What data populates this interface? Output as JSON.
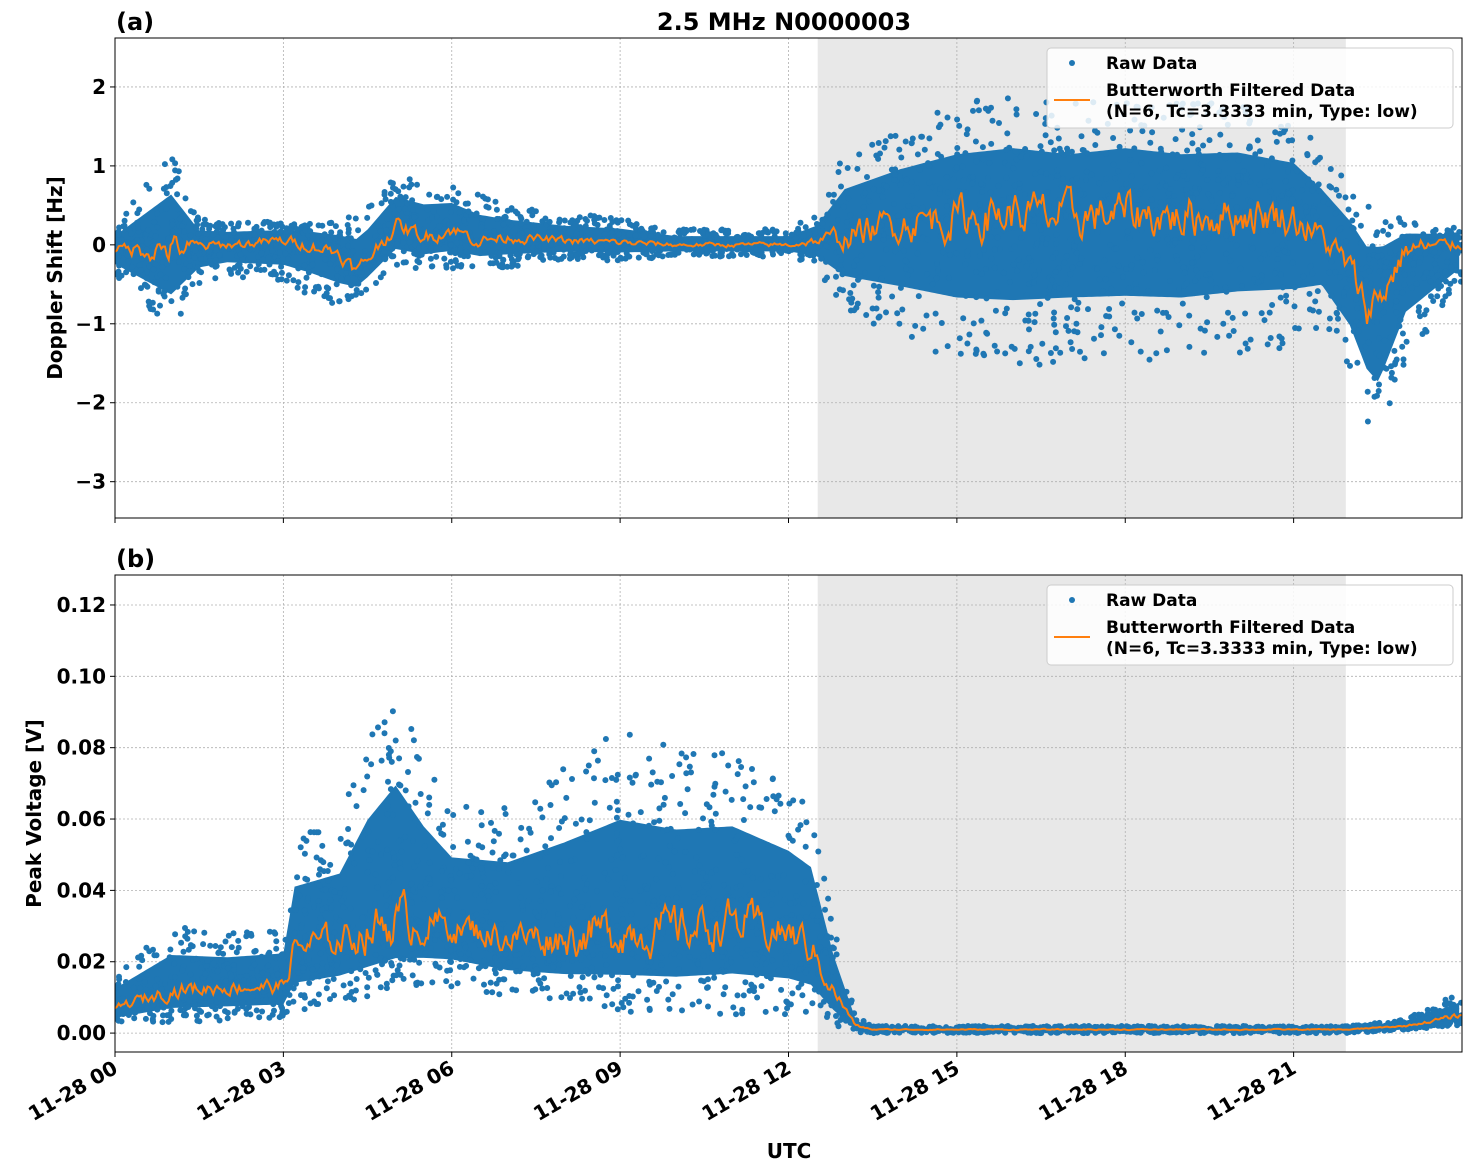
{
  "chart_data": [
    {
      "type": "scatter",
      "panel_label": "(a)",
      "title": "2.5 MHz N0000003",
      "xlabel": "",
      "ylabel": "Doppler Shift [Hz]",
      "xlim_hours_utc": [
        0,
        24
      ],
      "ylim": [
        -3.46,
        2.62
      ],
      "yticks": [
        2,
        1,
        0,
        -1,
        -2,
        -3
      ],
      "ytick_labels": [
        "2",
        "1",
        "0",
        "−1",
        "−2",
        "−3"
      ],
      "grid": true,
      "legend_placement": "top-right",
      "shaded_interval_hours_utc": [
        12.52,
        21.93
      ],
      "series": [
        {
          "name": "Raw Data",
          "kind": "scatter",
          "color": "#1f77b4",
          "hours": [
            0,
            1,
            1.5,
            2,
            3,
            4,
            4.5,
            5,
            6,
            7,
            8,
            9,
            10,
            11,
            12,
            12.5,
            13,
            14,
            15,
            16,
            17,
            18,
            19,
            20,
            21,
            21.5,
            22,
            22.5,
            23,
            24
          ],
          "band_low": [
            -0.4,
            -1.1,
            -0.5,
            -0.4,
            -0.5,
            -0.8,
            -0.6,
            -0.3,
            -0.3,
            -0.3,
            -0.2,
            -0.2,
            -0.15,
            -0.15,
            -0.15,
            -0.3,
            -0.8,
            -1.2,
            -1.5,
            -1.6,
            -1.5,
            -1.5,
            -1.5,
            -1.4,
            -1.3,
            -1.0,
            -1.6,
            -2.6,
            -1.5,
            -0.5
          ],
          "band_high": [
            0.25,
            1.2,
            0.35,
            0.3,
            0.3,
            0.3,
            0.5,
            0.9,
            0.8,
            0.5,
            0.4,
            0.35,
            0.2,
            0.2,
            0.2,
            0.4,
            1.2,
            1.5,
            1.8,
            1.9,
            1.8,
            1.9,
            1.8,
            1.8,
            1.6,
            1.2,
            0.8,
            0.5,
            0.3,
            0.25
          ]
        },
        {
          "name": "Butterworth Filtered Data\n(N=6, Tc=3.3333 min, Type: low)",
          "kind": "line",
          "color": "#ff7f0e",
          "hours": [
            0,
            1,
            2,
            3,
            3.5,
            4,
            4.3,
            5,
            5.5,
            6,
            6.5,
            7,
            8,
            9,
            10,
            11,
            12,
            12.5,
            13,
            14,
            15,
            16,
            17,
            18,
            19,
            20,
            21,
            21.5,
            22,
            22.3,
            22.6,
            23,
            24
          ],
          "values": [
            -0.05,
            -0.05,
            0,
            0.05,
            0,
            -0.1,
            -0.35,
            0.25,
            0.1,
            0.2,
            0.05,
            0.1,
            0.05,
            0.03,
            0,
            0,
            0,
            0.05,
            0.1,
            0.3,
            0.35,
            0.4,
            0.35,
            0.4,
            0.35,
            0.4,
            0.35,
            0.1,
            -0.3,
            -0.8,
            -0.6,
            -0.05,
            0
          ]
        }
      ]
    },
    {
      "type": "scatter",
      "panel_label": "(b)",
      "xlabel": "UTC",
      "ylabel": "Peak Voltage [V]",
      "xlim_hours_utc": [
        0,
        24
      ],
      "ylim": [
        -0.0053,
        0.1284
      ],
      "yticks": [
        0.12,
        0.1,
        0.08,
        0.06,
        0.04,
        0.02,
        0.0
      ],
      "ytick_labels": [
        "0.12",
        "0.10",
        "0.08",
        "0.06",
        "0.04",
        "0.02",
        "0.00"
      ],
      "xtick_labels": [
        "11-28 00",
        "11-28 03",
        "11-28 06",
        "11-28 09",
        "11-28 12",
        "11-28 15",
        "11-28 18",
        "11-28 21"
      ],
      "xtick_hours": [
        0,
        3,
        6,
        9,
        12,
        15,
        18,
        21
      ],
      "grid": true,
      "legend_placement": "top-right",
      "shaded_interval_hours_utc": [
        12.52,
        21.93
      ],
      "series": [
        {
          "name": "Raw Data",
          "kind": "scatter",
          "color": "#1f77b4",
          "hours": [
            0,
            1,
            2,
            3,
            3.2,
            4,
            4.5,
            5,
            5.5,
            6,
            7,
            8,
            9,
            10,
            11,
            12,
            12.4,
            12.8,
            13.2,
            13.5,
            22,
            23,
            24
          ],
          "band_low": [
            0.002,
            0.003,
            0.003,
            0.004,
            0.006,
            0.008,
            0.01,
            0.012,
            0.013,
            0.013,
            0.01,
            0.008,
            0.006,
            0.005,
            0.005,
            0.005,
            0.005,
            0.002,
            0,
            0,
            0,
            0.001,
            0.002
          ],
          "band_high": [
            0.017,
            0.03,
            0.028,
            0.03,
            0.055,
            0.06,
            0.085,
            0.1,
            0.08,
            0.065,
            0.065,
            0.075,
            0.085,
            0.08,
            0.08,
            0.07,
            0.065,
            0.03,
            0.005,
            0.002,
            0.002,
            0.004,
            0.012
          ]
        },
        {
          "name": "Butterworth Filtered Data\n(N=6, Tc=3.3333 min, Type: low)",
          "kind": "line",
          "color": "#ff7f0e",
          "hours": [
            0,
            1,
            2,
            3,
            3.2,
            4,
            5,
            6,
            7,
            8,
            9,
            10,
            11,
            12,
            12.4,
            12.8,
            13.2,
            13.5,
            22,
            23,
            24
          ],
          "values": [
            0.007,
            0.012,
            0.013,
            0.013,
            0.024,
            0.026,
            0.032,
            0.03,
            0.027,
            0.027,
            0.029,
            0.029,
            0.031,
            0.028,
            0.024,
            0.012,
            0.002,
            0.001,
            0.001,
            0.002,
            0.005
          ]
        }
      ]
    }
  ]
}
